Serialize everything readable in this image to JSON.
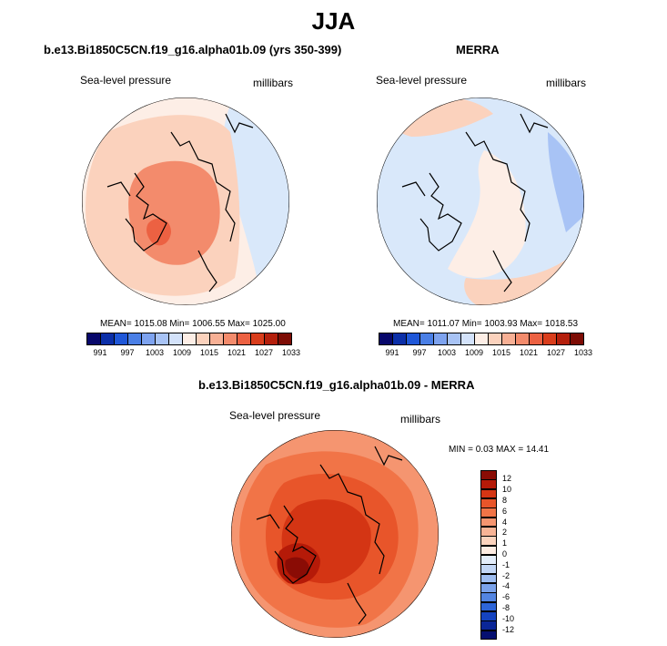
{
  "figure": {
    "title": "JJA"
  },
  "panels": [
    {
      "title": "b.e13.Bi1850C5CN.f19_g16.alpha01b.09 (yrs 350-399)",
      "variable": "Sea-level pressure",
      "units": "millibars",
      "stats": "MEAN= 1015.08  Min= 1006.55  Max= 1025.00"
    },
    {
      "title": "MERRA",
      "variable": "Sea-level pressure",
      "units": "millibars",
      "stats": "MEAN= 1011.07  Min= 1003.93  Max= 1018.53"
    },
    {
      "title": "b.e13.Bi1850C5CN.f19_g16.alpha01b.09 - MERRA",
      "variable": "Sea-level pressure",
      "units": "millibars",
      "stats": "MIN =   0.03 MAX =  14.41"
    }
  ],
  "colorbar_abs": {
    "labels": [
      "991",
      "997",
      "1003",
      "1009",
      "1015",
      "1021",
      "1027",
      "1033"
    ],
    "colors": [
      "#08086b",
      "#0b2fa8",
      "#1f57d8",
      "#4a7fe6",
      "#7ea3ef",
      "#a8c3f5",
      "#d3e2fa",
      "#fdeee6",
      "#fbd2bd",
      "#f7b095",
      "#f38b6c",
      "#ec6142",
      "#d93d1c",
      "#b41f0c",
      "#7d0c05"
    ]
  },
  "colorbar_diff": {
    "labels": [
      "12",
      "10",
      "8",
      "6",
      "4",
      "2",
      "1",
      "0",
      "-1",
      "-2",
      "-4",
      "-6",
      "-8",
      "-10",
      "-12"
    ],
    "colors": [
      "#8a0c05",
      "#b51a08",
      "#d43514",
      "#e8552a",
      "#f17447",
      "#f59570",
      "#f8b496",
      "#fbd3bd",
      "#fdece2",
      "#e3edfa",
      "#c2d6f5",
      "#9ebdf0",
      "#7aa2ea",
      "#5385e2",
      "#2d65d8",
      "#1443c0",
      "#0b2697",
      "#060f70"
    ]
  },
  "map_colors": {
    "sea": "#fdeee6",
    "low": "#d9e8fa",
    "lowdeep": "#a8c3f5",
    "mid": "#fbd2bd",
    "mid2": "#f7b095",
    "high": "#f38b6c",
    "peak": "#ec6142",
    "d1": "#f59570",
    "d2": "#f17447",
    "d3": "#e8552a",
    "d4": "#d43514",
    "d5": "#b51a08",
    "d6": "#8a0c05"
  }
}
